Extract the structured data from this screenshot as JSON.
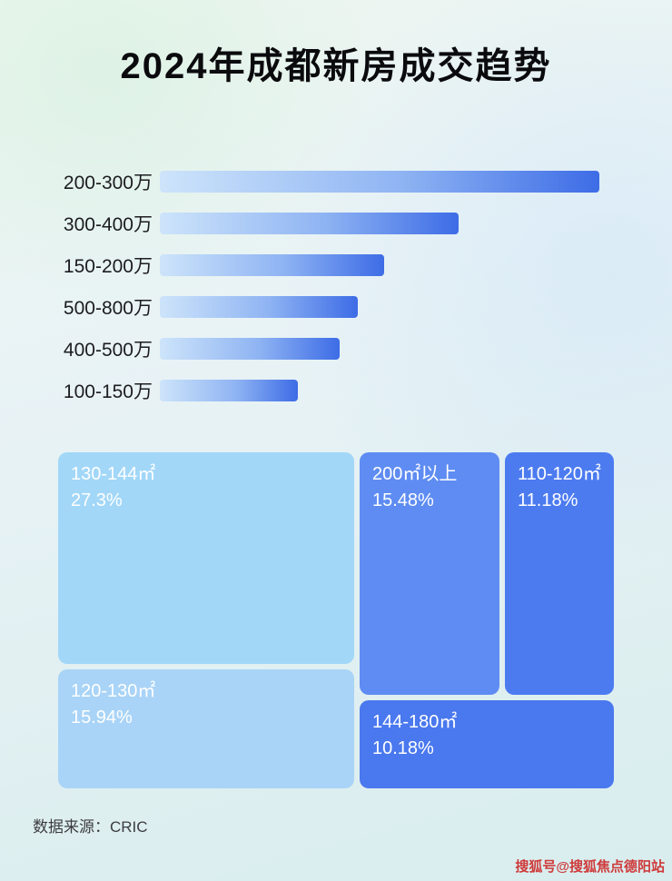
{
  "title": "2024年成都新房成交趋势",
  "footer": {
    "source": "数据来源：CRIC"
  },
  "watermark": {
    "text": "搜狐号@搜狐焦点德阳站",
    "color": "#cf3a3a"
  },
  "colors": {
    "bar_gradient_start": "#cde4fa",
    "bar_gradient_end": "#3d6ce6",
    "background_tint": "#e6f2f3",
    "title_text": "#0b0b0e"
  },
  "chart_data": [
    {
      "type": "bar",
      "orientation": "horizontal",
      "title": "2024年成都新房成交趋势",
      "categories": [
        "200-300万",
        "300-400万",
        "150-200万",
        "500-800万",
        "400-500万",
        "100-150万"
      ],
      "values_pct_of_max": [
        100,
        68,
        51,
        45,
        41,
        31.5
      ],
      "note": "bars carry no numeric labels; lengths estimated relative to longest bar (200-300万 = 100)",
      "xlabel": "",
      "ylabel": "",
      "grid": false,
      "legend": false
    },
    {
      "type": "treemap",
      "title": "",
      "items": [
        {
          "label": "130-144㎡",
          "value": 27.3,
          "value_label": "27.3%",
          "color": "#a2d7f8"
        },
        {
          "label": "120-130㎡",
          "value": 15.94,
          "value_label": "15.94%",
          "color": "#a9d4f7"
        },
        {
          "label": "200㎡以上",
          "value": 15.48,
          "value_label": "15.48%",
          "color": "#5e8cf2"
        },
        {
          "label": "110-120㎡",
          "value": 11.18,
          "value_label": "11.18%",
          "color": "#4c7bf0"
        },
        {
          "label": "144-180㎡",
          "value": 10.18,
          "value_label": "10.18%",
          "color": "#4a78ee"
        }
      ]
    }
  ]
}
